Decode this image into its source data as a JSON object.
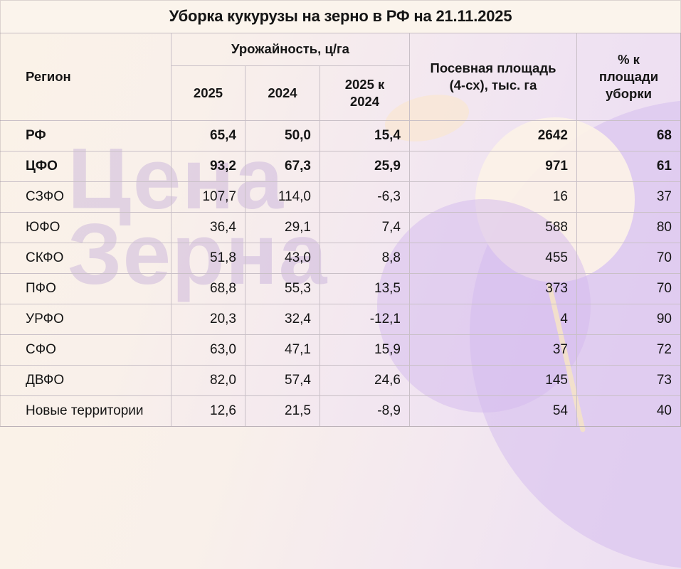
{
  "title": "Уборка кукурузы на зерно в РФ на 21.11.2025",
  "watermark": {
    "line1": "Цена",
    "line2": "Зерна"
  },
  "colors": {
    "title_bg": "#fbf4ec",
    "border": "#c9c0c7",
    "text": "#151515",
    "watermark": "#c7aede",
    "accent_lavender": "#d5bdee",
    "accent_cream": "#fcf2e7"
  },
  "table": {
    "headers": {
      "region": "Регион",
      "yield_group": "Урожайность, ц/га",
      "yield_2025": "2025",
      "yield_2024": "2024",
      "yield_diff": "2025 к 2024",
      "area": "Посевная площадь (4-сх), тыс. га",
      "pct": "% к площади уборки"
    },
    "rows": [
      {
        "region": "РФ",
        "y2025": "65,4",
        "y2024": "50,0",
        "diff": "15,4",
        "area": "2642",
        "pct": "68",
        "bold": true
      },
      {
        "region": "ЦФО",
        "y2025": "93,2",
        "y2024": "67,3",
        "diff": "25,9",
        "area": "971",
        "pct": "61",
        "bold": true
      },
      {
        "region": "СЗФО",
        "y2025": "107,7",
        "y2024": "114,0",
        "diff": "-6,3",
        "area": "16",
        "pct": "37",
        "bold": false
      },
      {
        "region": "ЮФО",
        "y2025": "36,4",
        "y2024": "29,1",
        "diff": "7,4",
        "area": "588",
        "pct": "80",
        "bold": false
      },
      {
        "region": "СКФО",
        "y2025": "51,8",
        "y2024": "43,0",
        "diff": "8,8",
        "area": "455",
        "pct": "70",
        "bold": false
      },
      {
        "region": "ПФО",
        "y2025": "68,8",
        "y2024": "55,3",
        "diff": "13,5",
        "area": "373",
        "pct": "70",
        "bold": false
      },
      {
        "region": "УРФО",
        "y2025": "20,3",
        "y2024": "32,4",
        "diff": "-12,1",
        "area": "4",
        "pct": "90",
        "bold": false
      },
      {
        "region": "СФО",
        "y2025": "63,0",
        "y2024": "47,1",
        "diff": "15,9",
        "area": "37",
        "pct": "72",
        "bold": false
      },
      {
        "region": "ДВФО",
        "y2025": "82,0",
        "y2024": "57,4",
        "diff": "24,6",
        "area": "145",
        "pct": "73",
        "bold": false
      },
      {
        "region": "Новые территории",
        "y2025": "12,6",
        "y2024": "21,5",
        "diff": "-8,9",
        "area": "54",
        "pct": "40",
        "bold": false
      }
    ]
  },
  "chart_data": {
    "type": "table",
    "title": "Уборка кукурузы на зерно в РФ на 21.11.2025",
    "columns": [
      "Регион",
      "Урожайность 2025, ц/га",
      "Урожайность 2024, ц/га",
      "2025 к 2024",
      "Посевная площадь (4-сх), тыс. га",
      "% к площади уборки"
    ],
    "categories": [
      "РФ",
      "ЦФО",
      "СЗФО",
      "ЮФО",
      "СКФО",
      "ПФО",
      "УРФО",
      "СФО",
      "ДВФО",
      "Новые территории"
    ],
    "series": [
      {
        "name": "Урожайность 2025, ц/га",
        "values": [
          65.4,
          93.2,
          107.7,
          36.4,
          51.8,
          68.8,
          20.3,
          63.0,
          82.0,
          12.6
        ]
      },
      {
        "name": "Урожайность 2024, ц/га",
        "values": [
          50.0,
          67.3,
          114.0,
          29.1,
          43.0,
          55.3,
          32.4,
          47.1,
          57.4,
          21.5
        ]
      },
      {
        "name": "2025 к 2024",
        "values": [
          15.4,
          25.9,
          -6.3,
          7.4,
          8.8,
          13.5,
          -12.1,
          15.9,
          24.6,
          -8.9
        ]
      },
      {
        "name": "Посевная площадь (4-сх), тыс. га",
        "values": [
          2642,
          971,
          16,
          588,
          455,
          373,
          4,
          37,
          145,
          54
        ]
      },
      {
        "name": "% к площади уборки",
        "values": [
          68,
          61,
          37,
          80,
          70,
          70,
          90,
          72,
          73,
          40
        ]
      }
    ]
  }
}
